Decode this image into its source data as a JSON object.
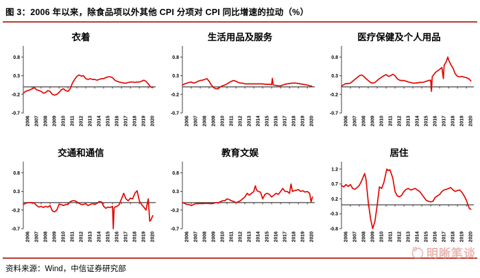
{
  "page": {
    "figure_title": "图 3：2006 年以来，除食品项以外其他 CPI 分项对 CPI 同比增速的拉动（%）",
    "source_note": "资料来源：Wind，中信证券研究部",
    "watermark_text": "明晰笔谈"
  },
  "colors": {
    "line": "#e10600",
    "rule": "#b93a31",
    "axis": "#404040",
    "watermark": "#dd8a80"
  },
  "chart_data": [
    {
      "type": "line",
      "title": "衣着",
      "x_tick_labels": [
        "2006",
        "2007",
        "2008",
        "2009",
        "2010",
        "2011",
        "2012",
        "2013",
        "2014",
        "2015",
        "2016",
        "2017",
        "2018",
        "2019",
        "2020"
      ],
      "y_ticks": [
        0.8,
        0.3,
        -0.2,
        -0.7
      ],
      "ylim": [
        -0.7,
        1.1
      ],
      "xlim": [
        2006,
        2020.83
      ],
      "grid": false,
      "x": [
        2006,
        2006.25,
        2006.5,
        2006.75,
        2007,
        2007.25,
        2007.5,
        2007.75,
        2008,
        2008.25,
        2008.5,
        2008.75,
        2009,
        2009.25,
        2009.5,
        2009.75,
        2010,
        2010.25,
        2010.5,
        2010.75,
        2011,
        2011.25,
        2011.5,
        2011.75,
        2012,
        2012.25,
        2012.5,
        2012.75,
        2013,
        2013.25,
        2013.5,
        2013.75,
        2014,
        2014.25,
        2014.5,
        2014.75,
        2015,
        2015.25,
        2015.5,
        2015.75,
        2016,
        2016.25,
        2016.5,
        2016.75,
        2017,
        2017.25,
        2017.5,
        2017.75,
        2018,
        2018.25,
        2018.5,
        2018.75,
        2019,
        2019.25,
        2019.5,
        2019.75,
        2020,
        2020.25,
        2020.5
      ],
      "y": [
        -0.17,
        -0.12,
        -0.1,
        -0.08,
        -0.05,
        -0.02,
        -0.08,
        -0.1,
        -0.12,
        -0.17,
        -0.15,
        -0.1,
        -0.12,
        -0.2,
        -0.22,
        -0.2,
        -0.15,
        -0.08,
        -0.05,
        -0.1,
        -0.12,
        -0.05,
        0.1,
        0.2,
        0.28,
        0.32,
        0.29,
        0.3,
        0.22,
        0.2,
        0.22,
        0.2,
        0.2,
        0.18,
        0.2,
        0.22,
        0.22,
        0.25,
        0.27,
        0.27,
        0.25,
        0.18,
        0.15,
        0.13,
        0.12,
        0.1,
        0.1,
        0.12,
        0.13,
        0.13,
        0.12,
        0.13,
        0.13,
        0.15,
        0.18,
        0.15,
        0.08,
        0.0,
        -0.02
      ]
    },
    {
      "type": "line",
      "title": "生活用品及服务",
      "x_tick_labels": [
        "2006",
        "2007",
        "2008",
        "2009",
        "2010",
        "2011",
        "2012",
        "2013",
        "2014",
        "2015",
        "2016",
        "2017",
        "2018",
        "2019",
        "2020"
      ],
      "y_ticks": [
        0.8,
        0.3,
        -0.2,
        -0.7
      ],
      "ylim": [
        -0.7,
        1.1
      ],
      "xlim": [
        2006,
        2020.83
      ],
      "grid": false,
      "x": [
        2006,
        2006.25,
        2006.5,
        2006.75,
        2007,
        2007.25,
        2007.5,
        2007.75,
        2008,
        2008.25,
        2008.5,
        2008.75,
        2009,
        2009.25,
        2009.5,
        2009.75,
        2010,
        2010.25,
        2010.5,
        2010.75,
        2011,
        2011.25,
        2011.5,
        2011.75,
        2012,
        2012.25,
        2012.5,
        2012.75,
        2013,
        2013.25,
        2013.5,
        2013.75,
        2014,
        2014.25,
        2014.5,
        2014.75,
        2015,
        2015.25,
        2015.5,
        2015.75,
        2016,
        2016.08,
        2016.17,
        2016.25,
        2016.5,
        2016.75,
        2017,
        2017.25,
        2017.5,
        2017.75,
        2018,
        2018.25,
        2018.5,
        2018.75,
        2019,
        2019.25,
        2019.5,
        2019.75,
        2020,
        2020.25,
        2020.5
      ],
      "y": [
        0.05,
        0.08,
        0.1,
        0.12,
        0.13,
        0.1,
        0.12,
        0.15,
        0.17,
        0.18,
        0.2,
        0.22,
        0.15,
        0.05,
        -0.02,
        -0.05,
        -0.05,
        0.0,
        0.03,
        0.05,
        0.08,
        0.12,
        0.15,
        0.17,
        0.15,
        0.12,
        0.1,
        0.1,
        0.08,
        0.08,
        0.08,
        0.08,
        0.08,
        0.08,
        0.08,
        0.08,
        0.08,
        0.07,
        0.07,
        0.07,
        0.06,
        0.23,
        0.05,
        0.05,
        0.04,
        0.03,
        0.03,
        0.05,
        0.07,
        0.08,
        0.09,
        0.1,
        0.1,
        0.1,
        0.09,
        0.08,
        0.07,
        0.06,
        0.05,
        0.03,
        0.02
      ]
    },
    {
      "type": "line",
      "title": "医疗保健及个人用品",
      "x_tick_labels": [
        "2006",
        "2007",
        "2008",
        "2009",
        "2010",
        "2011",
        "2012",
        "2013",
        "2014",
        "2015",
        "2016",
        "2017",
        "2018",
        "2019",
        "2020"
      ],
      "y_ticks": [
        0.8,
        0.3,
        -0.2,
        -0.7
      ],
      "ylim": [
        -0.7,
        1.1
      ],
      "xlim": [
        2006,
        2020.83
      ],
      "grid": false,
      "x": [
        2006,
        2006.25,
        2006.5,
        2006.75,
        2007,
        2007.25,
        2007.5,
        2007.75,
        2008,
        2008.25,
        2008.5,
        2008.75,
        2009,
        2009.25,
        2009.5,
        2009.75,
        2010,
        2010.25,
        2010.5,
        2010.75,
        2011,
        2011.25,
        2011.5,
        2011.75,
        2012,
        2012.25,
        2012.5,
        2012.75,
        2013,
        2013.25,
        2013.5,
        2013.75,
        2014,
        2014.25,
        2014.5,
        2014.75,
        2015,
        2015.25,
        2015.5,
        2015.75,
        2016,
        2016.08,
        2016.17,
        2016.25,
        2016.5,
        2016.75,
        2017,
        2017.25,
        2017.42,
        2017.5,
        2017.75,
        2017.92,
        2018,
        2018.25,
        2018.5,
        2018.75,
        2019,
        2019.25,
        2019.5,
        2019.75,
        2020,
        2020.25,
        2020.5
      ],
      "y": [
        0.02,
        0.06,
        0.09,
        0.09,
        0.1,
        0.15,
        0.2,
        0.25,
        0.3,
        0.32,
        0.28,
        0.22,
        0.17,
        0.12,
        0.1,
        0.12,
        0.17,
        0.22,
        0.26,
        0.3,
        0.33,
        0.28,
        0.3,
        0.34,
        0.3,
        0.22,
        0.18,
        0.17,
        0.17,
        0.15,
        0.13,
        0.12,
        0.1,
        0.1,
        0.11,
        0.12,
        0.12,
        0.13,
        0.15,
        0.17,
        0.18,
        -0.12,
        0.28,
        0.3,
        0.38,
        0.43,
        0.47,
        0.52,
        0.22,
        0.58,
        0.68,
        0.8,
        0.72,
        0.6,
        0.5,
        0.35,
        0.28,
        0.27,
        0.28,
        0.26,
        0.25,
        0.22,
        0.16
      ]
    },
    {
      "type": "line",
      "title": "交通和通信",
      "x_tick_labels": [
        "2006",
        "2007",
        "2008",
        "2009",
        "2010",
        "2011",
        "2012",
        "2013",
        "2014",
        "2015",
        "2016",
        "2017",
        "2018",
        "2019",
        "2020"
      ],
      "y_ticks": [
        0.8,
        0.3,
        -0.2,
        -0.7
      ],
      "ylim": [
        -0.7,
        1.1
      ],
      "xlim": [
        2006,
        2020.83
      ],
      "grid": false,
      "x": [
        2006,
        2006.25,
        2006.5,
        2006.75,
        2007,
        2007.25,
        2007.5,
        2007.75,
        2008,
        2008.25,
        2008.5,
        2008.75,
        2009,
        2009.25,
        2009.5,
        2009.75,
        2010,
        2010.25,
        2010.5,
        2010.75,
        2011,
        2011.25,
        2011.5,
        2011.75,
        2012,
        2012.25,
        2012.5,
        2012.75,
        2013,
        2013.25,
        2013.5,
        2013.75,
        2014,
        2014.25,
        2014.5,
        2014.75,
        2015,
        2015.25,
        2015.5,
        2015.75,
        2016,
        2016.08,
        2016.17,
        2016.25,
        2016.5,
        2016.75,
        2017,
        2017.25,
        2017.5,
        2017.75,
        2018,
        2018.25,
        2018.5,
        2018.75,
        2019,
        2019.25,
        2019.5,
        2019.75,
        2020,
        2020.17,
        2020.33,
        2020.5
      ],
      "y": [
        -0.05,
        -0.02,
        0.0,
        0.0,
        0.0,
        -0.02,
        -0.08,
        -0.12,
        -0.1,
        -0.13,
        -0.1,
        -0.12,
        -0.08,
        -0.22,
        -0.25,
        -0.2,
        -0.05,
        -0.05,
        -0.08,
        -0.05,
        -0.05,
        0.02,
        0.05,
        0.05,
        0.02,
        -0.02,
        -0.05,
        -0.05,
        -0.03,
        -0.08,
        -0.05,
        -0.03,
        -0.05,
        -0.02,
        0.03,
        0.02,
        -0.1,
        -0.15,
        -0.12,
        -0.13,
        -0.1,
        -0.7,
        -0.15,
        -0.12,
        -0.1,
        -0.05,
        0.1,
        0.25,
        0.1,
        0.05,
        0.12,
        0.1,
        0.25,
        0.32,
        0.05,
        -0.05,
        -0.12,
        -0.2,
        0.1,
        -0.5,
        -0.45,
        -0.35
      ]
    },
    {
      "type": "line",
      "title": "教育文娱",
      "x_tick_labels": [
        "2006",
        "2007",
        "2008",
        "2009",
        "2010",
        "2011",
        "2012",
        "2013",
        "2014",
        "2015",
        "2016",
        "2017",
        "2018",
        "2019",
        "2020"
      ],
      "y_ticks": [
        0.8,
        0.3,
        -0.2,
        -0.7
      ],
      "ylim": [
        -0.7,
        1.1
      ],
      "xlim": [
        2006,
        2020.83
      ],
      "grid": false,
      "x": [
        2006,
        2006.25,
        2006.5,
        2006.75,
        2007,
        2007.25,
        2007.5,
        2007.75,
        2008,
        2008.25,
        2008.5,
        2008.75,
        2009,
        2009.25,
        2009.5,
        2009.75,
        2010,
        2010.25,
        2010.5,
        2010.75,
        2011,
        2011.25,
        2011.5,
        2011.75,
        2012,
        2012.25,
        2012.5,
        2012.75,
        2013,
        2013.25,
        2013.5,
        2013.75,
        2014,
        2014.17,
        2014.33,
        2014.5,
        2014.75,
        2015,
        2015.25,
        2015.5,
        2015.75,
        2016,
        2016.25,
        2016.5,
        2016.75,
        2017,
        2017.25,
        2017.5,
        2017.75,
        2018,
        2018.17,
        2018.33,
        2018.5,
        2018.75,
        2019,
        2019.25,
        2019.5,
        2019.75,
        2020,
        2020.25,
        2020.42,
        2020.58
      ],
      "y": [
        0.0,
        -0.02,
        -0.05,
        -0.05,
        -0.08,
        -0.05,
        -0.03,
        -0.03,
        -0.02,
        -0.03,
        -0.02,
        -0.02,
        -0.02,
        -0.03,
        -0.02,
        0.0,
        0.0,
        0.02,
        0.05,
        0.05,
        0.1,
        0.08,
        0.05,
        0.03,
        0.0,
        0.02,
        0.05,
        0.1,
        0.15,
        0.25,
        0.2,
        0.25,
        0.3,
        0.45,
        0.33,
        0.3,
        0.28,
        0.1,
        0.22,
        0.25,
        0.22,
        0.15,
        0.2,
        0.25,
        0.22,
        0.3,
        0.38,
        0.3,
        0.3,
        0.25,
        0.5,
        0.3,
        0.32,
        0.33,
        0.35,
        0.3,
        0.32,
        0.28,
        0.3,
        0.25,
        0.02,
        0.15
      ]
    },
    {
      "type": "line",
      "title": "居住",
      "x_tick_labels": [
        "2006",
        "2007",
        "2008",
        "2009",
        "2010",
        "2011",
        "2012",
        "2013",
        "2014",
        "2015",
        "2016",
        "2017",
        "2018",
        "2019",
        "2020"
      ],
      "y_ticks": [
        1.2,
        0.7,
        0.2,
        -0.3,
        -0.8
      ],
      "ylim": [
        -0.8,
        1.45
      ],
      "xlim": [
        2006,
        2020.83
      ],
      "grid": false,
      "x": [
        2006,
        2006.25,
        2006.5,
        2006.75,
        2007,
        2007.25,
        2007.5,
        2007.75,
        2008,
        2008.25,
        2008.6,
        2008.75,
        2009,
        2009.25,
        2009.5,
        2009.75,
        2010,
        2010.25,
        2010.5,
        2010.75,
        2011.08,
        2011.25,
        2011.42,
        2011.58,
        2011.75,
        2012,
        2012.25,
        2012.5,
        2012.75,
        2013,
        2013.25,
        2013.5,
        2013.75,
        2014,
        2014.25,
        2014.5,
        2014.75,
        2015,
        2015.25,
        2015.5,
        2015.75,
        2016,
        2016.25,
        2016.5,
        2016.75,
        2017,
        2017.25,
        2017.5,
        2017.75,
        2018,
        2018.25,
        2018.5,
        2018.75,
        2019,
        2019.25,
        2019.5,
        2019.75,
        2020,
        2020.17,
        2020.33,
        2020.5
      ],
      "y": [
        0.65,
        0.6,
        0.68,
        0.62,
        0.68,
        0.55,
        0.52,
        0.58,
        0.65,
        0.8,
        1.05,
        0.85,
        0.1,
        -0.45,
        -0.8,
        -0.55,
        0.0,
        0.6,
        0.55,
        0.75,
        1.2,
        1.15,
        1.18,
        1.05,
        0.9,
        0.45,
        0.3,
        0.27,
        0.32,
        0.45,
        0.52,
        0.55,
        0.5,
        0.52,
        0.55,
        0.5,
        0.45,
        0.35,
        0.25,
        0.15,
        0.12,
        0.1,
        0.12,
        0.25,
        0.3,
        0.35,
        0.45,
        0.5,
        0.52,
        0.55,
        0.58,
        0.5,
        0.45,
        0.48,
        0.5,
        0.42,
        0.3,
        0.15,
        0.0,
        -0.12,
        -0.15
      ]
    }
  ]
}
